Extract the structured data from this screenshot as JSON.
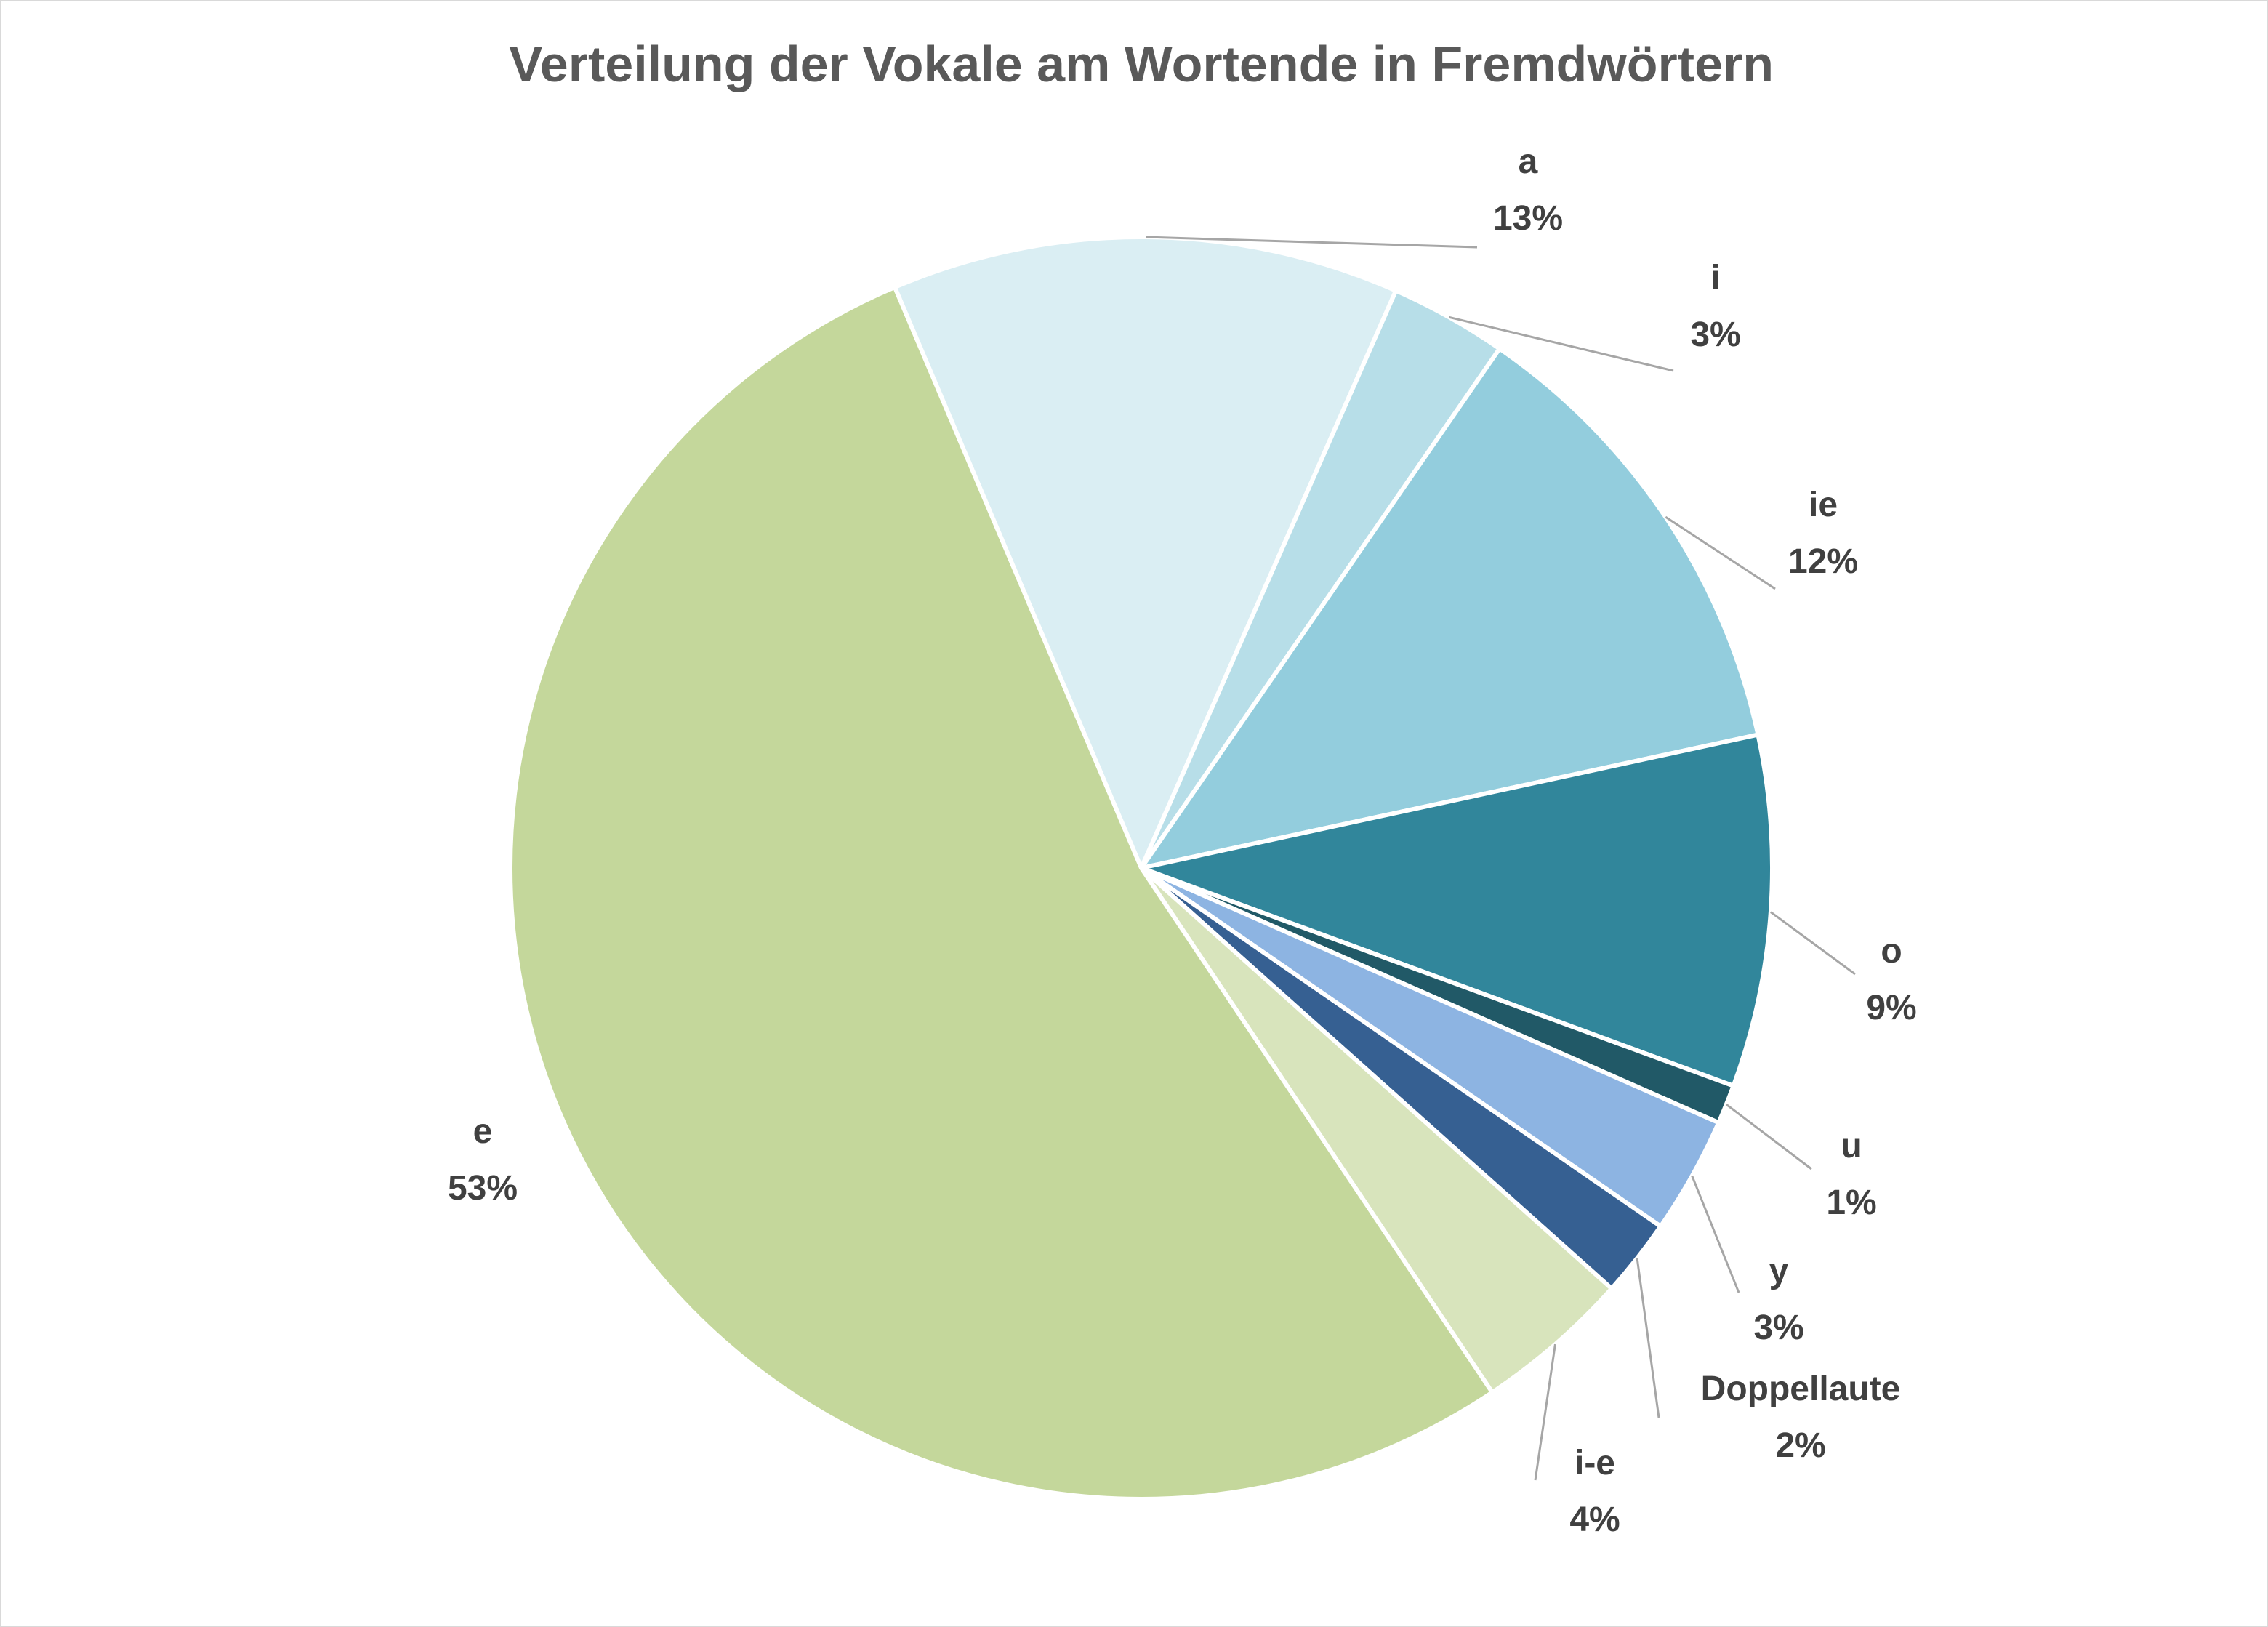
{
  "chart_data": {
    "type": "pie",
    "title": "Verteilung der Vokale am Wortende in Fremdwörtern",
    "slices": [
      {
        "label": "a",
        "value": 13,
        "display": "13%",
        "color": "#DAEEF3"
      },
      {
        "label": "i",
        "value": 3,
        "display": "3%",
        "color": "#B7DEE8"
      },
      {
        "label": "ie",
        "value": 12,
        "display": "12%",
        "color": "#93CDDD"
      },
      {
        "label": "o",
        "value": 9,
        "display": "9%",
        "color": "#31869B"
      },
      {
        "label": "u",
        "value": 1,
        "display": "1%",
        "color": "#215967"
      },
      {
        "label": "y",
        "value": 3,
        "display": "3%",
        "color": "#8DB4E2"
      },
      {
        "label": "Doppellaute",
        "value": 2,
        "display": "2%",
        "color": "#366092"
      },
      {
        "label": "i-e",
        "value": 4,
        "display": "4%",
        "color": "#D8E4BC"
      },
      {
        "label": "e",
        "value": 53,
        "display": "53%",
        "color": "#C4D79B"
      }
    ],
    "start_angle_deg": 337,
    "legend": "none",
    "data_labels": "category name and percentage"
  }
}
